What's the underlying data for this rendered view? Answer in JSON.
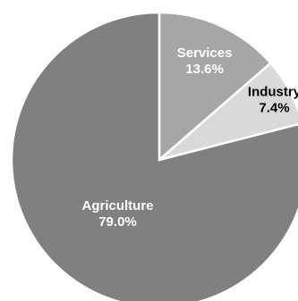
{
  "chart_data": {
    "type": "pie",
    "title": "",
    "slices": [
      {
        "label": "Services",
        "value": 13.6,
        "value_label": "13.6%",
        "color": "#a6a6a6",
        "text_color": "#ffffff"
      },
      {
        "label": "Industry",
        "value": 7.4,
        "value_label": "7.4%",
        "color": "#d9d9d9",
        "text_color": "#000000"
      },
      {
        "label": "Agriculture",
        "value": 79.0,
        "value_label": "79.0%",
        "color": "#808080",
        "text_color": "#ffffff"
      }
    ],
    "start_angle": "12 o'clock, clockwise",
    "legend": "none"
  }
}
